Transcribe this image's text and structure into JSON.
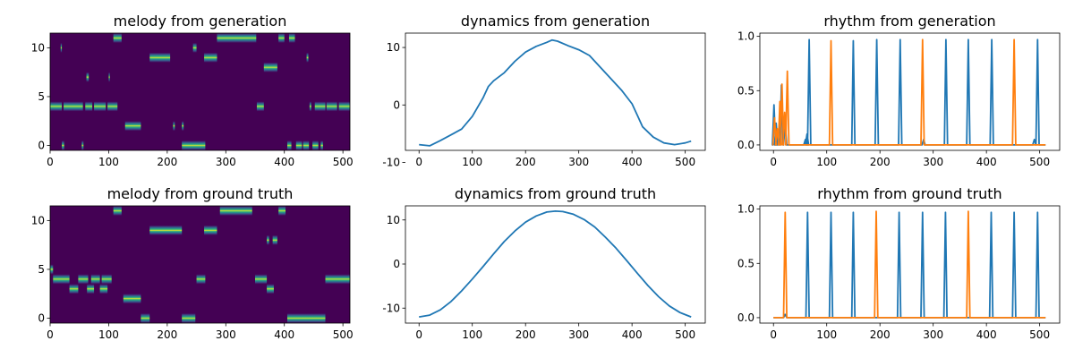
{
  "chart_data": [
    {
      "type": "heatmap",
      "title": "melody from generation",
      "xlim": [
        0,
        512
      ],
      "ylim": [
        -0.5,
        11.5
      ],
      "xticks": [
        0,
        100,
        200,
        300,
        400,
        500
      ],
      "yticks": [
        0,
        5,
        10
      ],
      "colormap": {
        "background": "#440154",
        "mid": "#21918c",
        "peak": "#fde725"
      },
      "segments": [
        {
          "pitch": 11,
          "start": 108,
          "end": 122
        },
        {
          "pitch": 11,
          "start": 285,
          "end": 352
        },
        {
          "pitch": 11,
          "start": 390,
          "end": 400
        },
        {
          "pitch": 11,
          "start": 408,
          "end": 418
        },
        {
          "pitch": 10,
          "start": 18,
          "end": 20
        },
        {
          "pitch": 10,
          "start": 244,
          "end": 250
        },
        {
          "pitch": 9,
          "start": 170,
          "end": 205
        },
        {
          "pitch": 9,
          "start": 263,
          "end": 285
        },
        {
          "pitch": 9,
          "start": 438,
          "end": 441
        },
        {
          "pitch": 8,
          "start": 365,
          "end": 388
        },
        {
          "pitch": 7,
          "start": 62,
          "end": 66
        },
        {
          "pitch": 7,
          "start": 100,
          "end": 102
        },
        {
          "pitch": 4,
          "start": 0,
          "end": 20
        },
        {
          "pitch": 4,
          "start": 23,
          "end": 56
        },
        {
          "pitch": 4,
          "start": 60,
          "end": 72
        },
        {
          "pitch": 4,
          "start": 75,
          "end": 95
        },
        {
          "pitch": 4,
          "start": 98,
          "end": 115
        },
        {
          "pitch": 4,
          "start": 353,
          "end": 365
        },
        {
          "pitch": 4,
          "start": 443,
          "end": 446
        },
        {
          "pitch": 4,
          "start": 452,
          "end": 470
        },
        {
          "pitch": 4,
          "start": 472,
          "end": 490
        },
        {
          "pitch": 4,
          "start": 493,
          "end": 512
        },
        {
          "pitch": 2,
          "start": 128,
          "end": 155
        },
        {
          "pitch": 2,
          "start": 210,
          "end": 213
        },
        {
          "pitch": 2,
          "start": 225,
          "end": 228
        },
        {
          "pitch": 0,
          "start": 20,
          "end": 24
        },
        {
          "pitch": 0,
          "start": 54,
          "end": 57
        },
        {
          "pitch": 0,
          "start": 225,
          "end": 265
        },
        {
          "pitch": 0,
          "start": 405,
          "end": 412
        },
        {
          "pitch": 0,
          "start": 420,
          "end": 430
        },
        {
          "pitch": 0,
          "start": 432,
          "end": 442
        },
        {
          "pitch": 0,
          "start": 448,
          "end": 458
        },
        {
          "pitch": 0,
          "start": 462,
          "end": 466
        }
      ]
    },
    {
      "type": "line",
      "title": "dynamics from generation",
      "xlim": [
        -25.6,
        537.6
      ],
      "ylim": [
        -7.9,
        12.5
      ],
      "xticks": [
        0,
        100,
        200,
        300,
        400,
        500
      ],
      "yticks": [
        -10,
        0,
        10
      ],
      "series": [
        {
          "color": "#1f77b4",
          "points": [
            [
              0,
              -6.9
            ],
            [
              20,
              -7.1
            ],
            [
              40,
              -6.2
            ],
            [
              60,
              -5.2
            ],
            [
              80,
              -4.2
            ],
            [
              100,
              -2.0
            ],
            [
              120,
              1.2
            ],
            [
              130,
              3.2
            ],
            [
              140,
              4.2
            ],
            [
              160,
              5.6
            ],
            [
              180,
              7.6
            ],
            [
              200,
              9.2
            ],
            [
              220,
              10.2
            ],
            [
              240,
              10.9
            ],
            [
              250,
              11.3
            ],
            [
              260,
              11.1
            ],
            [
              280,
              10.3
            ],
            [
              300,
              9.6
            ],
            [
              320,
              8.6
            ],
            [
              340,
              6.6
            ],
            [
              360,
              4.6
            ],
            [
              380,
              2.6
            ],
            [
              400,
              0.2
            ],
            [
              410,
              -1.8
            ],
            [
              420,
              -3.8
            ],
            [
              440,
              -5.6
            ],
            [
              460,
              -6.6
            ],
            [
              480,
              -6.9
            ],
            [
              500,
              -6.6
            ],
            [
              511,
              -6.3
            ]
          ]
        }
      ]
    },
    {
      "type": "line",
      "title": "rhythm from generation",
      "xlim": [
        -25.6,
        537.6
      ],
      "ylim": [
        -0.05,
        1.03
      ],
      "xticks": [
        0,
        100,
        200,
        300,
        400,
        500
      ],
      "yticks": [
        0.0,
        0.5,
        1.0
      ],
      "series": [
        {
          "color": "#1f77b4",
          "baseline": 0.0,
          "peaks": [
            [
              1,
              0.37
            ],
            [
              5,
              0.2
            ],
            [
              8,
              0.1
            ],
            [
              15,
              0.55
            ],
            [
              22,
              0.2
            ],
            [
              60,
              0.05
            ],
            [
              63,
              0.1
            ],
            [
              67,
              0.97
            ],
            [
              150,
              0.96
            ],
            [
              194,
              0.97
            ],
            [
              238,
              0.97
            ],
            [
              282,
              0.05
            ],
            [
              324,
              0.97
            ],
            [
              366,
              0.97
            ],
            [
              410,
              0.97
            ],
            [
              490,
              0.05
            ],
            [
              496,
              0.97
            ]
          ]
        },
        {
          "color": "#ff7f0e",
          "baseline": 0.0,
          "peaks": [
            [
              2,
              0.25
            ],
            [
              7,
              0.15
            ],
            [
              12,
              0.4
            ],
            [
              16,
              0.56
            ],
            [
              21,
              0.3
            ],
            [
              26,
              0.68
            ],
            [
              108,
              0.96
            ],
            [
              280,
              0.97
            ],
            [
              452,
              0.97
            ]
          ]
        }
      ]
    },
    {
      "type": "heatmap",
      "title": "melody from ground truth",
      "xlim": [
        0,
        512
      ],
      "ylim": [
        -0.5,
        11.5
      ],
      "xticks": [
        0,
        100,
        200,
        300,
        400,
        500
      ],
      "yticks": [
        0,
        5,
        10
      ],
      "colormap": {
        "background": "#440154",
        "mid": "#21918c",
        "peak": "#fde725"
      },
      "segments": [
        {
          "pitch": 11,
          "start": 108,
          "end": 122
        },
        {
          "pitch": 11,
          "start": 290,
          "end": 345
        },
        {
          "pitch": 11,
          "start": 390,
          "end": 402
        },
        {
          "pitch": 9,
          "start": 170,
          "end": 225
        },
        {
          "pitch": 9,
          "start": 263,
          "end": 285
        },
        {
          "pitch": 8,
          "start": 370,
          "end": 374
        },
        {
          "pitch": 8,
          "start": 380,
          "end": 388
        },
        {
          "pitch": 5,
          "start": 0,
          "end": 5
        },
        {
          "pitch": 4,
          "start": 5,
          "end": 33
        },
        {
          "pitch": 4,
          "start": 48,
          "end": 65
        },
        {
          "pitch": 4,
          "start": 70,
          "end": 85
        },
        {
          "pitch": 4,
          "start": 88,
          "end": 105
        },
        {
          "pitch": 4,
          "start": 250,
          "end": 265
        },
        {
          "pitch": 4,
          "start": 350,
          "end": 370
        },
        {
          "pitch": 4,
          "start": 470,
          "end": 512
        },
        {
          "pitch": 3,
          "start": 33,
          "end": 48
        },
        {
          "pitch": 3,
          "start": 63,
          "end": 75
        },
        {
          "pitch": 3,
          "start": 85,
          "end": 98
        },
        {
          "pitch": 3,
          "start": 370,
          "end": 382
        },
        {
          "pitch": 2,
          "start": 125,
          "end": 155
        },
        {
          "pitch": 0,
          "start": 155,
          "end": 170
        },
        {
          "pitch": 0,
          "start": 225,
          "end": 248
        },
        {
          "pitch": 0,
          "start": 405,
          "end": 470
        }
      ]
    },
    {
      "type": "line",
      "title": "dynamics from ground truth",
      "xlim": [
        -25.6,
        537.6
      ],
      "ylim": [
        -13.4,
        13.2
      ],
      "xticks": [
        0,
        100,
        200,
        300,
        400,
        500
      ],
      "yticks": [
        -10,
        0,
        10
      ],
      "series": [
        {
          "color": "#1f77b4",
          "points": [
            [
              0,
              -12.0
            ],
            [
              20,
              -11.6
            ],
            [
              40,
              -10.4
            ],
            [
              60,
              -8.5
            ],
            [
              80,
              -6.1
            ],
            [
              100,
              -3.4
            ],
            [
              120,
              -0.6
            ],
            [
              140,
              2.3
            ],
            [
              160,
              5.1
            ],
            [
              180,
              7.5
            ],
            [
              200,
              9.5
            ],
            [
              220,
              10.9
            ],
            [
              240,
              11.8
            ],
            [
              256,
              12.0
            ],
            [
              270,
              11.9
            ],
            [
              290,
              11.3
            ],
            [
              310,
              10.1
            ],
            [
              330,
              8.4
            ],
            [
              350,
              6.1
            ],
            [
              370,
              3.6
            ],
            [
              390,
              0.8
            ],
            [
              410,
              -2.1
            ],
            [
              430,
              -4.9
            ],
            [
              450,
              -7.4
            ],
            [
              470,
              -9.5
            ],
            [
              490,
              -11.0
            ],
            [
              511,
              -12.0
            ]
          ]
        }
      ]
    },
    {
      "type": "line",
      "title": "rhythm from ground truth",
      "xlim": [
        -25.6,
        537.6
      ],
      "ylim": [
        -0.05,
        1.03
      ],
      "xticks": [
        0,
        100,
        200,
        300,
        400,
        500
      ],
      "yticks": [
        0.0,
        0.5,
        1.0
      ],
      "series": [
        {
          "color": "#1f77b4",
          "baseline": 0.0,
          "peaks": [
            [
              22,
              0.03
            ],
            [
              64,
              0.97
            ],
            [
              108,
              0.97
            ],
            [
              150,
              0.97
            ],
            [
              236,
              0.97
            ],
            [
              280,
              0.97
            ],
            [
              323,
              0.97
            ],
            [
              409,
              0.97
            ],
            [
              452,
              0.97
            ],
            [
              496,
              0.97
            ]
          ]
        },
        {
          "color": "#ff7f0e",
          "baseline": 0.0,
          "peaks": [
            [
              22,
              0.97
            ],
            [
              193,
              0.98
            ],
            [
              366,
              0.98
            ]
          ]
        }
      ]
    }
  ]
}
